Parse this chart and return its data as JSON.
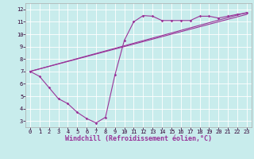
{
  "xlabel": "Windchill (Refroidissement éolien,°C)",
  "ylabel": "",
  "bg_color": "#c8ecec",
  "grid_color": "#ffffff",
  "line_color": "#993399",
  "xlim": [
    -0.5,
    23.5
  ],
  "ylim": [
    2.5,
    12.5
  ],
  "xticks": [
    0,
    1,
    2,
    3,
    4,
    5,
    6,
    7,
    8,
    9,
    10,
    11,
    12,
    13,
    14,
    15,
    16,
    17,
    18,
    19,
    20,
    21,
    22,
    23
  ],
  "yticks": [
    3,
    4,
    5,
    6,
    7,
    8,
    9,
    10,
    11,
    12
  ],
  "curve1_x": [
    0,
    1,
    2,
    3,
    4,
    5,
    6,
    7,
    8,
    9,
    10,
    11,
    12,
    13,
    14,
    15,
    16,
    17,
    18,
    19,
    20,
    21,
    22,
    23
  ],
  "curve1_y": [
    7.0,
    6.6,
    5.7,
    4.8,
    4.4,
    3.7,
    3.2,
    2.85,
    3.3,
    6.7,
    9.5,
    11.0,
    11.5,
    11.45,
    11.1,
    11.1,
    11.1,
    11.1,
    11.45,
    11.45,
    11.3,
    11.45,
    11.6,
    11.7
  ],
  "curve2_x": [
    0,
    23
  ],
  "curve2_y": [
    7.0,
    11.75
  ],
  "curve3_x": [
    0,
    23
  ],
  "curve3_y": [
    7.0,
    11.6
  ],
  "font_size_tick": 5,
  "font_size_label": 6
}
